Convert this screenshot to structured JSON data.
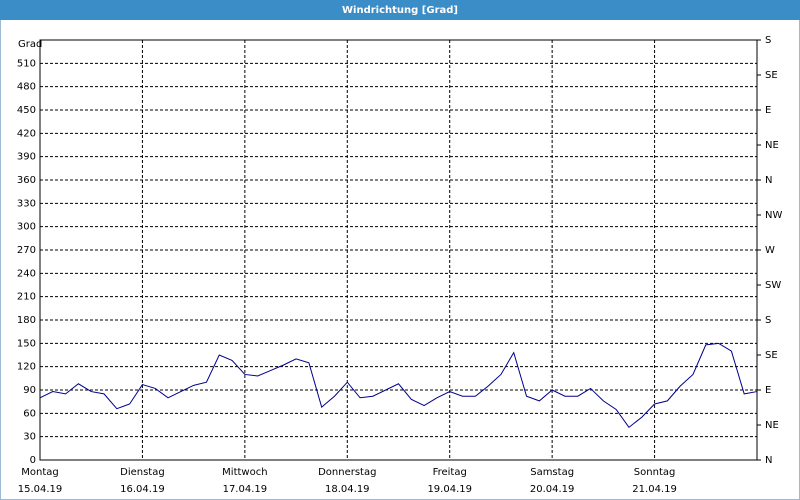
{
  "chart_data": {
    "type": "line",
    "title": "Windrichtung [Grad]",
    "ylabel": "Grad",
    "x": [
      0,
      0.125,
      0.25,
      0.375,
      0.5,
      0.625,
      0.75,
      0.875,
      1,
      1.125,
      1.25,
      1.375,
      1.5,
      1.625,
      1.75,
      1.875,
      2,
      2.125,
      2.25,
      2.375,
      2.5,
      2.625,
      2.75,
      2.875,
      3,
      3.125,
      3.25,
      3.375,
      3.5,
      3.625,
      3.75,
      3.875,
      4,
      4.125,
      4.25,
      4.375,
      4.5,
      4.625,
      4.75,
      4.875,
      5,
      5.125,
      5.25,
      5.375,
      5.5,
      5.625,
      5.75,
      5.875,
      6,
      6.125,
      6.25,
      6.375,
      6.5,
      6.625,
      6.75,
      6.875,
      7
    ],
    "series": [
      {
        "color": "#00008b",
        "values": [
          80,
          88,
          85,
          98,
          88,
          85,
          66,
          72,
          97,
          92,
          80,
          88,
          96,
          100,
          135,
          128,
          110,
          108,
          115,
          122,
          130,
          125,
          68,
          82,
          100,
          80,
          82,
          90,
          98,
          78,
          70,
          80,
          88,
          82,
          82,
          95,
          110,
          138,
          82,
          76,
          90,
          82,
          82,
          92,
          76,
          65,
          42,
          55,
          72,
          76,
          95,
          110,
          148,
          150,
          140,
          85,
          88
        ]
      }
    ],
    "xlim": [
      0,
      7
    ],
    "xticks": [
      {
        "value": 0,
        "label": "Montag"
      },
      {
        "value": 1,
        "label": "Dienstag"
      },
      {
        "value": 2,
        "label": "Mittwoch"
      },
      {
        "value": 3,
        "label": "Donnerstag"
      },
      {
        "value": 4,
        "label": "Freitag"
      },
      {
        "value": 5,
        "label": "Samstag"
      },
      {
        "value": 6,
        "label": "Sonntag"
      }
    ],
    "xtick_dates": [
      "15.04.19",
      "16.04.19",
      "17.04.19",
      "18.04.19",
      "19.04.19",
      "20.04.19",
      "21.04.19"
    ],
    "ylim": [
      0,
      540
    ],
    "yticks": [
      0,
      30,
      60,
      90,
      120,
      150,
      180,
      210,
      240,
      270,
      300,
      330,
      360,
      390,
      420,
      450,
      480,
      510
    ],
    "y2lim": [
      0,
      540
    ],
    "y2ticks": [
      {
        "value": 0,
        "label": "N"
      },
      {
        "value": 45,
        "label": "NE"
      },
      {
        "value": 90,
        "label": "E"
      },
      {
        "value": 135,
        "label": "SE"
      },
      {
        "value": 180,
        "label": "S"
      },
      {
        "value": 225,
        "label": "SW"
      },
      {
        "value": 270,
        "label": "W"
      },
      {
        "value": 315,
        "label": "NW"
      },
      {
        "value": 360,
        "label": "N"
      },
      {
        "value": 405,
        "label": "NE"
      },
      {
        "value": 450,
        "label": "E"
      },
      {
        "value": 495,
        "label": "SE"
      },
      {
        "value": 540,
        "label": "S"
      }
    ],
    "grid": true
  }
}
